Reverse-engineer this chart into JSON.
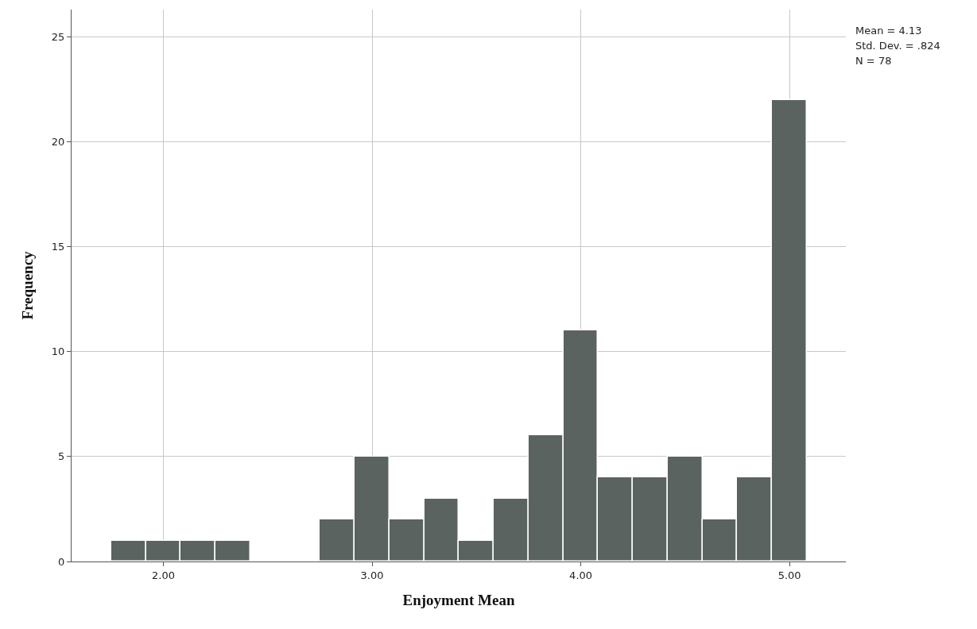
{
  "chart_data": {
    "type": "histogram",
    "xlabel": "Enjoyment Mean",
    "ylabel": "Frequency",
    "bins": [
      1.75,
      1.9167,
      2.0833,
      2.25,
      2.4167,
      2.5833,
      2.75,
      2.9167,
      3.0833,
      3.25,
      3.4167,
      3.5833,
      3.75,
      3.9167,
      4.0833,
      4.25,
      4.4167,
      4.5833,
      4.75,
      4.9167,
      5.0833
    ],
    "values": [
      1,
      1,
      1,
      1,
      0,
      0,
      2,
      5,
      2,
      3,
      1,
      3,
      6,
      11,
      4,
      4,
      5,
      2,
      4,
      22
    ],
    "color": "#5b6360",
    "xlim": [
      1.56,
      5.27
    ],
    "xticks": [
      {
        "value": 2,
        "label": "2.00"
      },
      {
        "value": 3,
        "label": "3.00"
      },
      {
        "value": 4,
        "label": "4.00"
      },
      {
        "value": 5,
        "label": "5.00"
      }
    ],
    "ylim": [
      0,
      26.3
    ],
    "yticks": [
      0,
      5,
      10,
      15,
      20,
      25
    ],
    "grid": true,
    "annotations": [
      "Mean = 4.13",
      "Std. Dev. = .824",
      "N = 78"
    ]
  }
}
